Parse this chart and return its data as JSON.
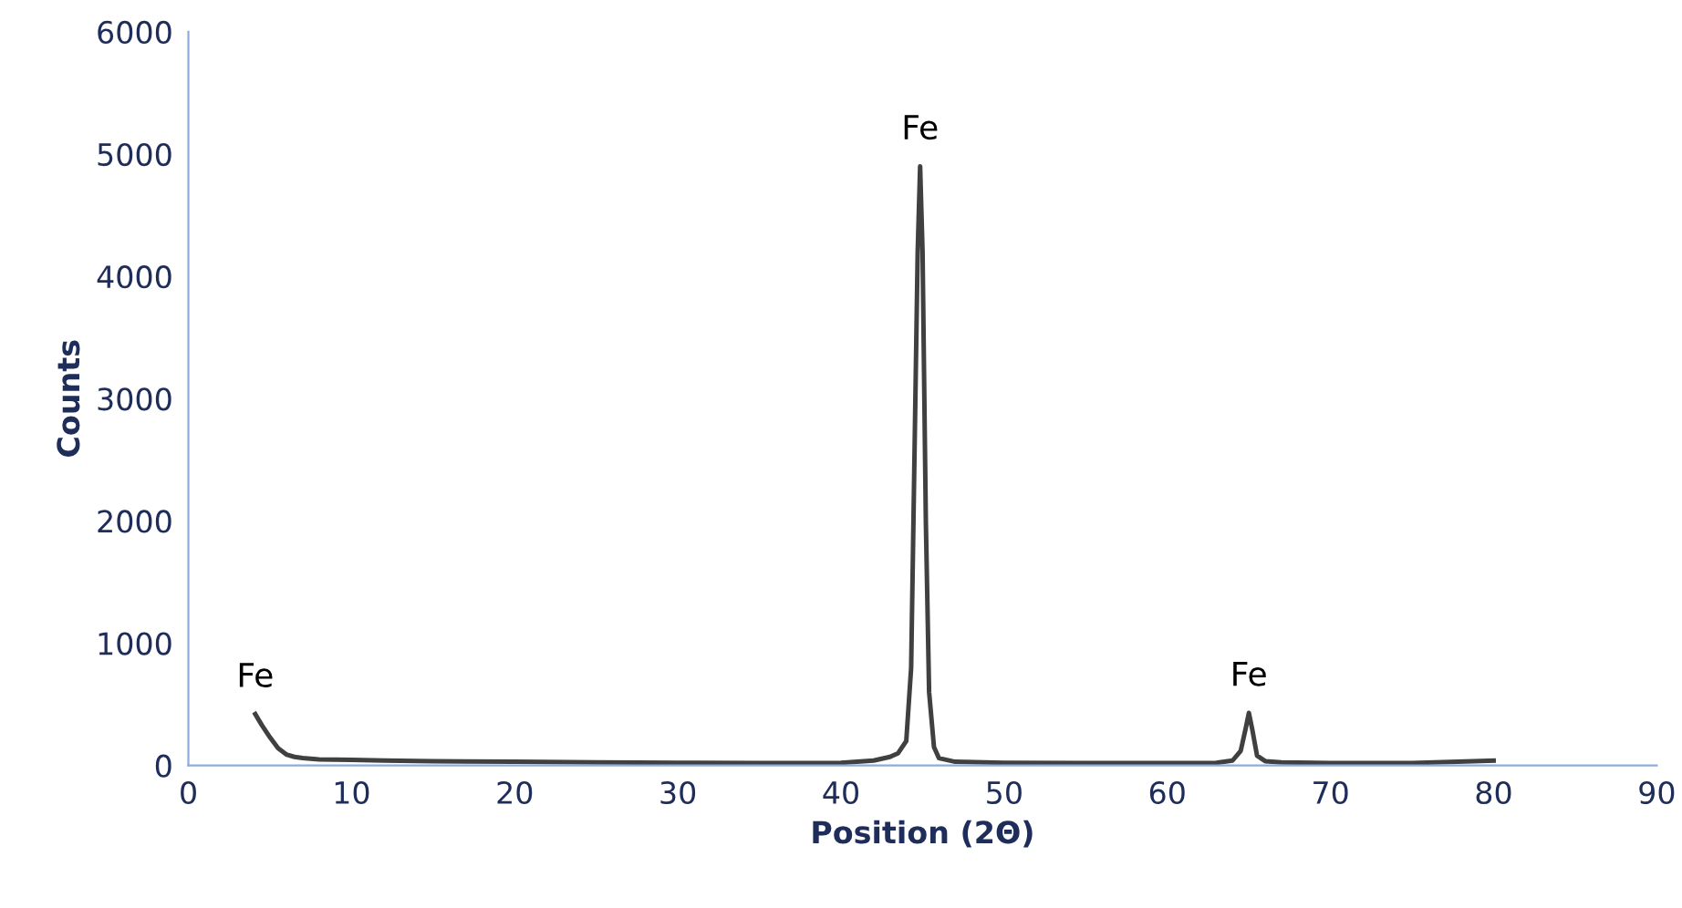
{
  "chart_data": {
    "type": "line",
    "xlabel": "Position (2Θ)",
    "ylabel": "Counts",
    "xlim": [
      0,
      90
    ],
    "xticks": [
      0,
      10,
      20,
      30,
      40,
      50,
      60,
      70,
      80,
      90
    ],
    "ylim": [
      0,
      6000
    ],
    "yticks": [
      0,
      1000,
      2000,
      3000,
      4000,
      5000,
      6000
    ],
    "grid": false,
    "marker": "none",
    "line_style": "solid",
    "series": [
      {
        "color": "#404040",
        "x": [
          4.1,
          4.5,
          5.0,
          5.5,
          6.0,
          6.5,
          7.0,
          8.0,
          10,
          12,
          15,
          20,
          25,
          30,
          35,
          40,
          42,
          43,
          43.5,
          44,
          44.3,
          44.5,
          44.7,
          44.85,
          45.0,
          45.2,
          45.4,
          45.7,
          46,
          47,
          50,
          55,
          60,
          63,
          64,
          64.5,
          64.8,
          65.0,
          65.2,
          65.5,
          66,
          67,
          70,
          75,
          80
        ],
        "values": [
          420,
          330,
          230,
          140,
          90,
          70,
          60,
          50,
          45,
          40,
          35,
          30,
          25,
          22,
          20,
          22,
          40,
          70,
          100,
          200,
          800,
          2500,
          4200,
          4900,
          4200,
          2000,
          600,
          150,
          60,
          30,
          22,
          20,
          20,
          22,
          40,
          120,
          300,
          430,
          300,
          80,
          35,
          25,
          20,
          20,
          40
        ]
      }
    ],
    "annotations": [
      {
        "text": "Fe",
        "x": 4.1,
        "y": 420
      },
      {
        "text": "Fe",
        "x": 44.85,
        "y": 4900
      },
      {
        "text": "Fe",
        "x": 65.0,
        "y": 430
      }
    ]
  }
}
